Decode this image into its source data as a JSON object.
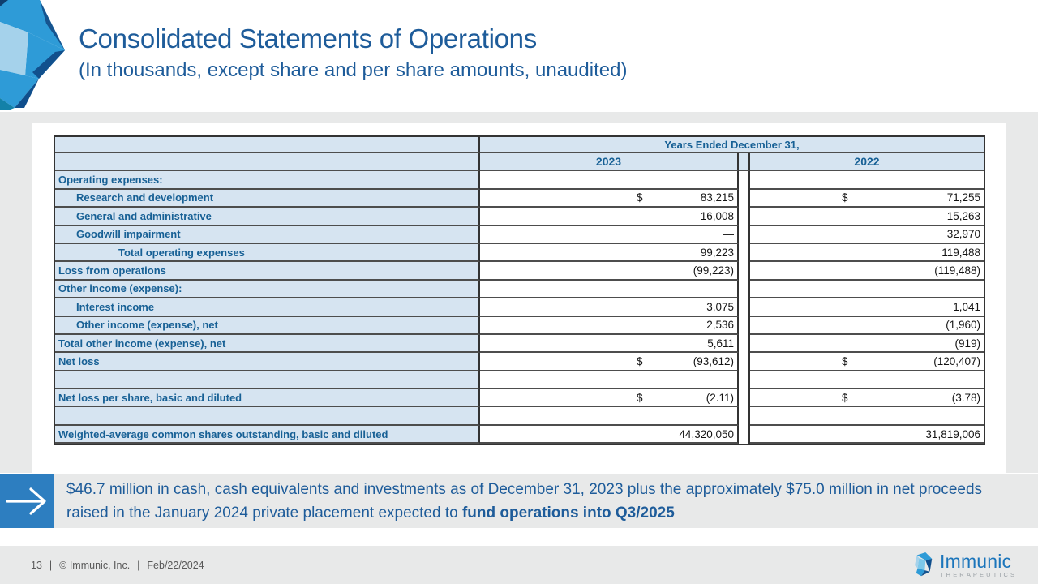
{
  "header": {
    "title": "Consolidated Statements of Operations",
    "subtitle": "(In thousands, except share and per share amounts, unaudited)"
  },
  "table": {
    "span_header": "Years Ended December 31,",
    "columns": {
      "y2023": "2023",
      "y2022": "2022"
    },
    "rows": [
      {
        "label": "Operating expenses:",
        "indent": 0,
        "v2023": "",
        "v2022": ""
      },
      {
        "label": "Research and development",
        "indent": 1,
        "cur2023": "$",
        "v2023": "83,215",
        "cur2022": "$",
        "v2022": "71,255"
      },
      {
        "label": "General and administrative",
        "indent": 1,
        "v2023": "16,008",
        "v2022": "15,263"
      },
      {
        "label": "Goodwill impairment",
        "indent": 1,
        "v2023": "—",
        "v2022": "32,970"
      },
      {
        "label": "Total operating expenses",
        "indent": 2,
        "v2023": "99,223",
        "v2022": "119,488"
      },
      {
        "label": "Loss from operations",
        "indent": 0,
        "v2023": "(99,223)",
        "v2022": "(119,488)"
      },
      {
        "label": "Other income (expense):",
        "indent": 0,
        "v2023": "",
        "v2022": ""
      },
      {
        "label": "Interest income",
        "indent": 1,
        "v2023": "3,075",
        "v2022": "1,041"
      },
      {
        "label": "Other income (expense), net",
        "indent": 1,
        "v2023": "2,536",
        "v2022": "(1,960)"
      },
      {
        "label": "Total other income (expense), net",
        "indent": 0,
        "v2023": "5,611",
        "v2022": "(919)"
      },
      {
        "label": "Net loss",
        "indent": 0,
        "cur2023": "$",
        "v2023": "(93,612)",
        "cur2022": "$",
        "v2022": "(120,407)"
      },
      {
        "label": "",
        "indent": 0,
        "v2023": "",
        "v2022": ""
      },
      {
        "label": "Net loss per share, basic and diluted",
        "indent": 0,
        "cur2023": "$",
        "v2023": "(2.11)",
        "cur2022": "$",
        "v2022": "(3.78)"
      },
      {
        "label": "",
        "indent": 0,
        "v2023": "",
        "v2022": ""
      },
      {
        "label": "Weighted-average common shares outstanding, basic and diluted",
        "indent": 0,
        "v2023": "44,320,050",
        "v2022": "31,819,006"
      }
    ]
  },
  "callout": {
    "arrow_icon": "right-arrow-icon",
    "text_regular": "$46.7 million in cash, cash equivalents and investments as of December 31, 2023 plus the approximately $75.0 million in net proceeds raised in the January 2024 private placement expected to ",
    "text_bold": "fund operations into Q3/2025"
  },
  "footer": {
    "page_number": "13",
    "separator": "|",
    "copyright": "© Immunic, Inc.",
    "date": "Feb/22/2024",
    "logo_name": "Immunic",
    "logo_sub": "THERAPEUTICS"
  },
  "colors": {
    "accent_blue": "#1E5C9A",
    "table_header_blue": "#D6E4F1",
    "label_text_blue": "#176095",
    "arrow_box_blue": "#2D7EC0",
    "logo_blue": "#1B75BB",
    "band_gray": "#E8E9E9",
    "footer_text_gray": "#595959"
  }
}
